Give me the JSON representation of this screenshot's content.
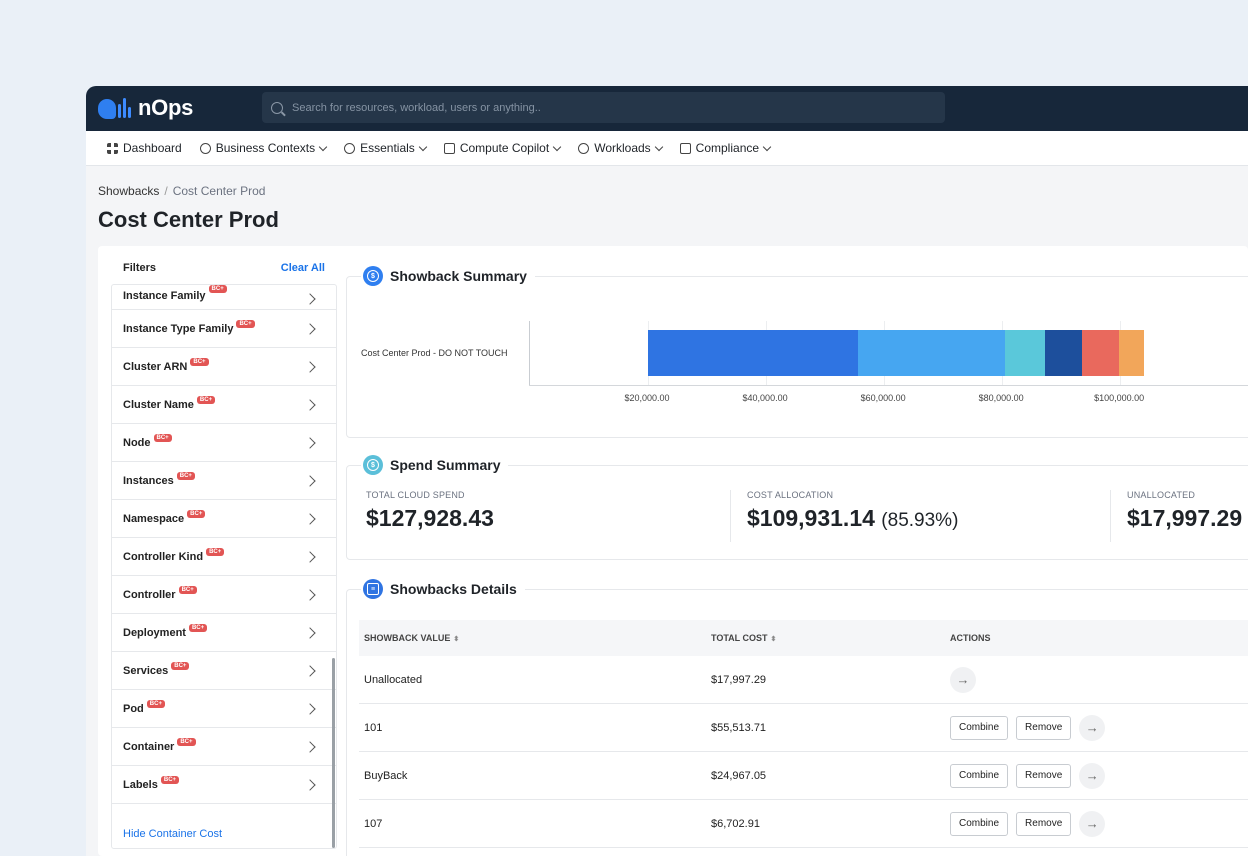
{
  "app": {
    "logo_text": "nOps"
  },
  "search": {
    "placeholder": "Search for resources, workload, users or anything.."
  },
  "nav": {
    "items": [
      {
        "label": "Dashboard",
        "icon": "grid-icon",
        "has_menu": false
      },
      {
        "label": "Business Contexts",
        "icon": "people-icon",
        "has_menu": true
      },
      {
        "label": "Essentials",
        "icon": "target-icon",
        "has_menu": true
      },
      {
        "label": "Compute Copilot",
        "icon": "copilot-icon",
        "has_menu": true
      },
      {
        "label": "Workloads",
        "icon": "gear-icon",
        "has_menu": true
      },
      {
        "label": "Compliance",
        "icon": "document-icon",
        "has_menu": true
      }
    ]
  },
  "breadcrumb": {
    "parent": "Showbacks",
    "separator": "/",
    "current": "Cost Center Prod"
  },
  "page": {
    "title": "Cost Center Prod"
  },
  "filters": {
    "title": "Filters",
    "clear_all": "Clear All",
    "badge_text": "BC+",
    "items": [
      "Instance Family",
      "Instance Type Family",
      "Cluster ARN",
      "Cluster Name",
      "Node",
      "Instances",
      "Namespace",
      "Controller Kind",
      "Controller",
      "Deployment",
      "Services",
      "Pod",
      "Container",
      "Labels"
    ],
    "hide_container_cost": "Hide Container Cost"
  },
  "showback_summary": {
    "title": "Showback Summary",
    "icon": "dollar-icon",
    "color": "#2f7ff0"
  },
  "chart_data": {
    "type": "bar",
    "orientation": "horizontal-stacked",
    "categories": [
      "Cost Center Prod - DO NOT TOUCH"
    ],
    "x_ticks": [
      "$20,000.00",
      "$40,000.00",
      "$60,000.00",
      "$80,000.00",
      "$100,000.00"
    ],
    "xlim": [
      0,
      122000
    ],
    "segments": [
      {
        "start": 0,
        "end": 20000,
        "color": "#ffffff"
      },
      {
        "start": 20000,
        "end": 55514,
        "color": "#2f74e2"
      },
      {
        "start": 55514,
        "end": 80481,
        "color": "#46a6f1"
      },
      {
        "start": 80481,
        "end": 87184,
        "color": "#5ac8da"
      },
      {
        "start": 87184,
        "end": 93500,
        "color": "#1d4f9c"
      },
      {
        "start": 93500,
        "end": 99800,
        "color": "#e9695d"
      },
      {
        "start": 99800,
        "end": 104000,
        "color": "#f2a65a"
      }
    ]
  },
  "spend_summary": {
    "title": "Spend Summary",
    "icon": "dollar-icon",
    "color": "#5bbfd9",
    "kpis": [
      {
        "label": "TOTAL CLOUD SPEND",
        "value": "$127,928.43",
        "pct": ""
      },
      {
        "label": "COST ALLOCATION",
        "value": "$109,931.14",
        "pct": "(85.93%)"
      },
      {
        "label": "UNALLOCATED",
        "value": "$17,997.29",
        "pct": ""
      }
    ]
  },
  "details": {
    "title": "Showbacks Details",
    "icon": "layers-icon",
    "color": "#2f74e2",
    "columns": {
      "showback_value": "SHOWBACK VALUE",
      "total_cost": "TOTAL COST",
      "actions": "ACTIONS",
      "sort_glyph": "⬍"
    },
    "combine_label": "Combine",
    "remove_label": "Remove",
    "go_glyph": "→",
    "rows": [
      {
        "value": "Unallocated",
        "cost": "$17,997.29",
        "actions": false
      },
      {
        "value": "101",
        "cost": "$55,513.71",
        "actions": true
      },
      {
        "value": "BuyBack",
        "cost": "$24,967.05",
        "actions": true
      },
      {
        "value": "107",
        "cost": "$6,702.91",
        "actions": true
      }
    ]
  }
}
